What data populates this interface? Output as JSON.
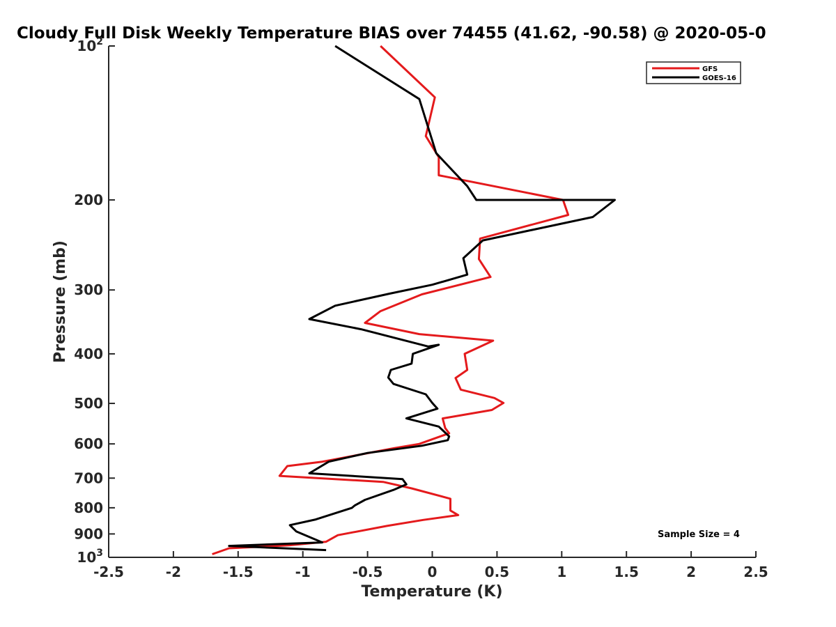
{
  "chart_data": {
    "type": "line",
    "title": "Cloudy Full Disk Weekly Temperature BIAS over 74455 (41.62, -90.58) @ 2020-05-0",
    "xlabel": "Temperature (K)",
    "ylabel": "Pressure (mb)",
    "xlim": [
      -2.5,
      2.5
    ],
    "ylim": [
      100,
      1000
    ],
    "y_scale": "log",
    "y_reversed": true,
    "grid": false,
    "legend_position": "top-right",
    "x_ticks": [
      -2.5,
      -2,
      -1.5,
      -1,
      -0.5,
      0,
      0.5,
      1,
      1.5,
      2,
      2.5
    ],
    "x_tick_labels": [
      "-2.5",
      "-2",
      "-1.5",
      "-1",
      "-0.5",
      "0",
      "0.5",
      "1",
      "1.5",
      "2",
      "2.5"
    ],
    "y_ticks": [
      {
        "value": 100,
        "label": "10",
        "sup": "2"
      },
      {
        "value": 200,
        "label": "200",
        "sup": ""
      },
      {
        "value": 300,
        "label": "300",
        "sup": ""
      },
      {
        "value": 400,
        "label": "400",
        "sup": ""
      },
      {
        "value": 500,
        "label": "500",
        "sup": ""
      },
      {
        "value": 600,
        "label": "600",
        "sup": ""
      },
      {
        "value": 700,
        "label": "700",
        "sup": ""
      },
      {
        "value": 800,
        "label": "800",
        "sup": ""
      },
      {
        "value": 900,
        "label": "900",
        "sup": ""
      },
      {
        "value": 1000,
        "label": "10",
        "sup": "3"
      }
    ],
    "annotation": "Sample Size = 4",
    "series": [
      {
        "name": "GFS",
        "color": "#e41a1c",
        "points": [
          [
            -0.4,
            100
          ],
          [
            0.02,
            126
          ],
          [
            -0.05,
            150
          ],
          [
            0.05,
            165
          ],
          [
            0.05,
            179
          ],
          [
            1.01,
            200
          ],
          [
            1.05,
            214
          ],
          [
            0.37,
            238
          ],
          [
            0.36,
            261
          ],
          [
            0.45,
            283
          ],
          [
            -0.08,
            306
          ],
          [
            -0.4,
            330
          ],
          [
            -0.52,
            348
          ],
          [
            -0.1,
            366
          ],
          [
            0.47,
            377
          ],
          [
            0.25,
            400
          ],
          [
            0.27,
            430
          ],
          [
            0.18,
            446
          ],
          [
            0.22,
            470
          ],
          [
            0.48,
            488
          ],
          [
            0.55,
            499
          ],
          [
            0.46,
            515
          ],
          [
            0.08,
            535
          ],
          [
            0.1,
            559
          ],
          [
            0.13,
            572
          ],
          [
            -0.1,
            600
          ],
          [
            -0.3,
            612
          ],
          [
            -0.85,
            650
          ],
          [
            -1.12,
            663
          ],
          [
            -1.18,
            693
          ],
          [
            -0.38,
            712
          ],
          [
            -0.16,
            733
          ],
          [
            0.14,
            768
          ],
          [
            0.14,
            810
          ],
          [
            0.2,
            827
          ],
          [
            -0.07,
            845
          ],
          [
            -0.35,
            868
          ],
          [
            -0.73,
            905
          ],
          [
            -0.82,
            932
          ],
          [
            -1.1,
            947
          ],
          [
            -1.57,
            960
          ],
          [
            -1.7,
            986
          ]
        ]
      },
      {
        "name": "GOES-16",
        "color": "#000000",
        "points": [
          [
            -0.75,
            100
          ],
          [
            -0.1,
            127
          ],
          [
            0.03,
            162
          ],
          [
            0.27,
            188
          ],
          [
            0.34,
            200
          ],
          [
            1.41,
            200
          ],
          [
            1.24,
            216
          ],
          [
            0.39,
            240
          ],
          [
            0.24,
            260
          ],
          [
            0.27,
            280
          ],
          [
            0.0,
            293
          ],
          [
            -0.33,
            305
          ],
          [
            -0.75,
            322
          ],
          [
            -0.95,
            342
          ],
          [
            -0.55,
            358
          ],
          [
            -0.03,
            387
          ],
          [
            0.05,
            384
          ],
          [
            -0.15,
            400
          ],
          [
            -0.16,
            418
          ],
          [
            -0.32,
            430
          ],
          [
            -0.34,
            445
          ],
          [
            -0.3,
            458
          ],
          [
            -0.05,
            480
          ],
          [
            0.0,
            499
          ],
          [
            0.04,
            512
          ],
          [
            -0.2,
            535
          ],
          [
            0.05,
            555
          ],
          [
            0.13,
            580
          ],
          [
            0.12,
            590
          ],
          [
            -0.08,
            605
          ],
          [
            -0.5,
            625
          ],
          [
            -0.8,
            650
          ],
          [
            -0.95,
            685
          ],
          [
            -0.23,
            703
          ],
          [
            -0.2,
            720
          ],
          [
            -0.3,
            738
          ],
          [
            -0.52,
            772
          ],
          [
            -0.6,
            792
          ],
          [
            -0.62,
            800
          ],
          [
            -0.9,
            843
          ],
          [
            -1.1,
            865
          ],
          [
            -1.05,
            890
          ],
          [
            -0.85,
            935
          ],
          [
            -1.57,
            950
          ],
          [
            -0.82,
            968
          ]
        ]
      }
    ]
  }
}
